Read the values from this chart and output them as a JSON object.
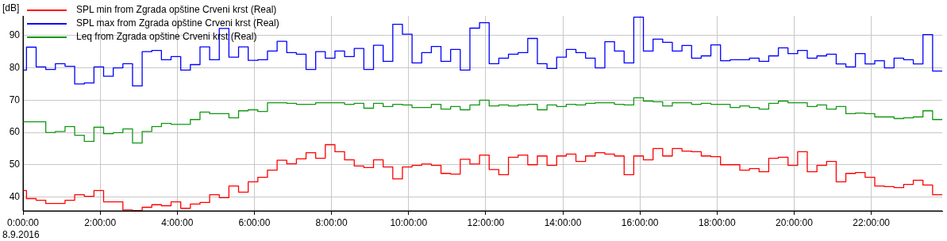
{
  "chart_data": {
    "type": "step",
    "ylabel": "[dB]",
    "annotations": [
      "8.9.2016"
    ],
    "x": [
      0,
      0.09,
      0.34,
      0.59,
      0.84,
      1.09,
      1.34,
      1.59,
      1.84,
      2.09,
      2.34,
      2.59,
      2.84,
      3.09,
      3.34,
      3.59,
      3.84,
      4.09,
      4.34,
      4.59,
      4.84,
      5.09,
      5.34,
      5.59,
      5.84,
      6.09,
      6.34,
      6.59,
      6.84,
      7.09,
      7.34,
      7.59,
      7.84,
      8.09,
      8.34,
      8.59,
      8.84,
      9.09,
      9.34,
      9.59,
      9.84,
      10.09,
      10.34,
      10.59,
      10.84,
      11.09,
      11.34,
      11.59,
      11.84,
      12.09,
      12.34,
      12.59,
      12.84,
      13.09,
      13.34,
      13.59,
      13.84,
      14.09,
      14.34,
      14.59,
      14.84,
      15.09,
      15.34,
      15.59,
      15.84,
      16.09,
      16.34,
      16.59,
      16.84,
      17.09,
      17.34,
      17.59,
      17.84,
      18.09,
      18.34,
      18.59,
      18.84,
      19.09,
      19.34,
      19.59,
      19.84,
      20.09,
      20.34,
      20.59,
      20.84,
      21.09,
      21.34,
      21.59,
      21.84,
      22.09,
      22.34,
      22.59,
      22.84,
      23.09,
      23.34,
      23.59,
      23.84
    ],
    "xlim": [
      0,
      23.84
    ],
    "xticks": [
      {
        "value": 0,
        "label": "0:00:00"
      },
      {
        "value": 2,
        "label": "2:00:00"
      },
      {
        "value": 4,
        "label": "4:00:00"
      },
      {
        "value": 6,
        "label": "6:00:00"
      },
      {
        "value": 8,
        "label": "8:00:00"
      },
      {
        "value": 10,
        "label": "10:00:00"
      },
      {
        "value": 12,
        "label": "12:00:00"
      },
      {
        "value": 14,
        "label": "14:00:00"
      },
      {
        "value": 16,
        "label": "16:00:00"
      },
      {
        "value": 18,
        "label": "18:00:00"
      },
      {
        "value": 20,
        "label": "20:00:00"
      },
      {
        "value": 22,
        "label": "22:00:00"
      }
    ],
    "ylim": [
      35.7,
      96.1
    ],
    "yticks": [
      40,
      50,
      60,
      70,
      80,
      90
    ],
    "grid": true,
    "legend": "top left",
    "line_style": "solid",
    "series": [
      {
        "name": "SPL min from Zgrada opštine Crveni krst (Real)",
        "color": "#ff0000",
        "values": [
          42,
          39.5,
          39,
          38,
          38,
          39,
          40.7,
          40.2,
          42,
          38.5,
          38.5,
          36,
          35.8,
          36.8,
          37.6,
          37.3,
          38.5,
          36.5,
          37.8,
          38.3,
          40.7,
          39.8,
          43.4,
          41.5,
          44.7,
          46.1,
          48.3,
          51.4,
          50.3,
          51.8,
          53.7,
          52,
          56.2,
          54,
          51.5,
          49.6,
          49.1,
          51.5,
          49.3,
          45.6,
          49.3,
          49.8,
          50.2,
          49.8,
          47.3,
          47.1,
          51.7,
          50.2,
          53,
          48.5,
          46.9,
          52.3,
          53,
          50,
          52.7,
          49.8,
          52.7,
          53.3,
          51,
          52.7,
          53.7,
          53.3,
          52.7,
          46.9,
          52.7,
          51.5,
          55,
          52.7,
          55,
          54.2,
          54,
          52.7,
          52.5,
          50,
          50,
          48.3,
          48.8,
          47.8,
          52,
          52.3,
          49.8,
          54,
          47.8,
          49.8,
          51,
          44.7,
          47.3,
          47.6,
          46.1,
          43.4,
          43.2,
          42.9,
          43.9,
          45.2,
          43.7,
          40.7,
          40.7
        ]
      },
      {
        "name": "SPL max from Zgrada opštine Crveni krst (Real)",
        "color": "#0000ff",
        "values": [
          79.3,
          86.4,
          80.3,
          79.5,
          81.3,
          80.5,
          75,
          75.3,
          80.3,
          77.4,
          80,
          81.3,
          74.4,
          85,
          85.4,
          82.5,
          83.5,
          79.3,
          81,
          86.5,
          82.5,
          92.2,
          83.3,
          86.5,
          82.3,
          82.5,
          85.2,
          88.2,
          84.7,
          84.2,
          79.5,
          85,
          83,
          85.2,
          83.5,
          86,
          79.5,
          87,
          82,
          93.5,
          90.4,
          81.5,
          84.7,
          86.6,
          82,
          85.7,
          79.3,
          92.3,
          94,
          81.3,
          83,
          84.2,
          84.7,
          89.1,
          81.3,
          79.8,
          83.3,
          85.7,
          84.7,
          83,
          80,
          88.1,
          85.2,
          81.5,
          95.7,
          85.2,
          88.9,
          87.9,
          85.2,
          86.9,
          83,
          83.7,
          87.1,
          82.2,
          82.5,
          82.5,
          83,
          82,
          83.7,
          86.2,
          84.4,
          85.4,
          83,
          83.7,
          84.2,
          81.2,
          80.3,
          84.4,
          81.2,
          82.2,
          80,
          83,
          82.5,
          81.2,
          90.3,
          79,
          79
        ]
      },
      {
        "name": "Leq from Zgrada opštine Crveni krst (Real)",
        "color": "#129812",
        "values": [
          63.3,
          63.3,
          63.3,
          60,
          60.3,
          61.8,
          59.1,
          57.2,
          61.6,
          59.6,
          59.9,
          61.1,
          56.7,
          60.3,
          61.8,
          62.8,
          62.5,
          62.5,
          64,
          66.3,
          65.8,
          65.8,
          64.5,
          66.7,
          67,
          66.5,
          69.2,
          69.2,
          69,
          68.7,
          68.7,
          69.2,
          69.2,
          69.2,
          68.7,
          69,
          67.5,
          69,
          68,
          68.7,
          68.5,
          67.7,
          67.7,
          68.7,
          67.2,
          68,
          67,
          68.5,
          70,
          68.2,
          68.5,
          68.2,
          68.5,
          68.7,
          67,
          68.5,
          68,
          68.7,
          68.5,
          69,
          69.2,
          69.2,
          68.7,
          68.5,
          70.7,
          69.7,
          69.5,
          68.2,
          69.2,
          69.2,
          68.7,
          69,
          68.7,
          68.7,
          67.7,
          68.2,
          67.7,
          67.2,
          69,
          69.7,
          69.2,
          69.2,
          68,
          68.5,
          67.2,
          68,
          65.8,
          66,
          65.8,
          64.8,
          64.8,
          64.3,
          64.5,
          64.8,
          66.7,
          64,
          64
        ]
      }
    ]
  }
}
